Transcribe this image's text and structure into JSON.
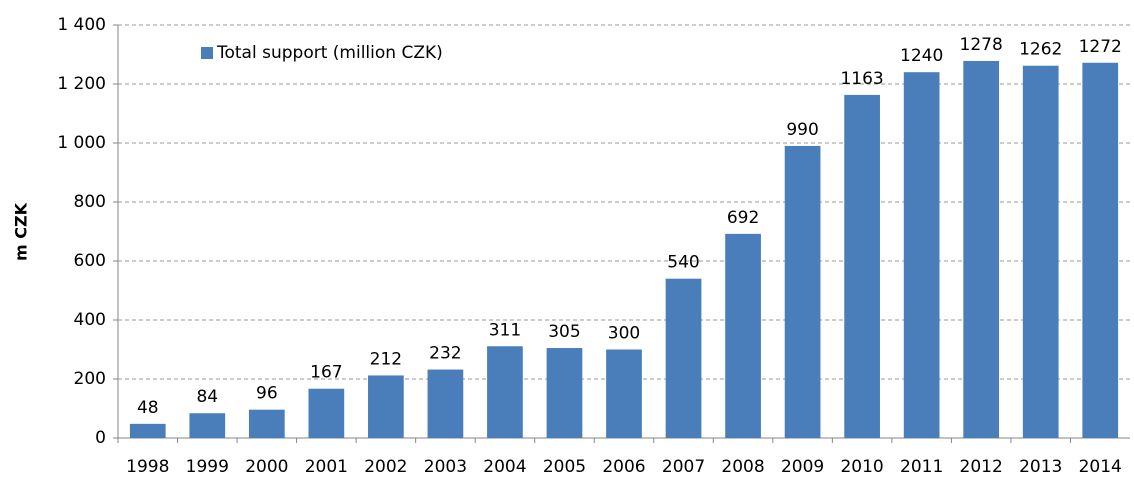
{
  "chart_data": {
    "type": "bar",
    "y_label": "m CZK",
    "categories": [
      "1998",
      "1999",
      "2000",
      "2001",
      "2002",
      "2003",
      "2004",
      "2005",
      "2006",
      "2007",
      "2008",
      "2009",
      "2010",
      "2011",
      "2012",
      "2013",
      "2014"
    ],
    "series": [
      {
        "name": "Total support (million CZK)",
        "color": "#4a7ebb",
        "values": [
          48,
          84,
          96,
          167,
          212,
          232,
          311,
          305,
          300,
          540,
          692,
          990,
          1163,
          1240,
          1278,
          1262,
          1272
        ]
      }
    ],
    "ylim": [
      0,
      1400
    ],
    "yticks": [
      0,
      200,
      400,
      600,
      800,
      {
        "value": 1000,
        "label": "1 000"
      },
      {
        "value": 1200,
        "label": "1 200"
      },
      {
        "value": 1400,
        "label": "1 400"
      }
    ],
    "grid": true,
    "legend": "top-left"
  }
}
